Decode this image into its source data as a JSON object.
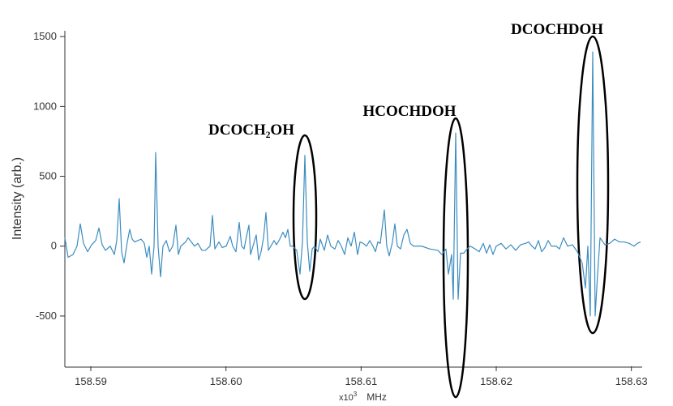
{
  "chart_data": {
    "type": "line",
    "ylabel": "Intensity (arb.)",
    "xlabel": "MHz",
    "x_multiplier": "x10",
    "x_multiplier_exponent": "3",
    "annotations": [
      "DCOCH₂OH",
      "HCOCHDOH",
      "DCOCHDOH"
    ],
    "color": "#3d8dbf",
    "xlim": [
      158.58808,
      158.63068
    ],
    "ylim": [
      -860,
      1530
    ],
    "xticks": [
      158.59,
      {
        "value": 158.6,
        "label": "158.60"
      },
      158.61,
      158.62,
      158.63
    ],
    "yticks": [
      -500,
      0,
      500,
      1000,
      1500
    ],
    "x": [
      158.58808,
      158.58832,
      158.58868,
      158.58898,
      158.58922,
      158.58946,
      158.58976,
      158.59006,
      158.59036,
      158.5906,
      158.59084,
      158.59108,
      158.59144,
      158.59174,
      158.59192,
      158.5921,
      158.59228,
      158.59246,
      158.5927,
      158.59288,
      158.59306,
      158.59324,
      158.59348,
      158.59372,
      158.59396,
      158.59414,
      158.59432,
      158.5945,
      158.59468,
      158.5948,
      158.59498,
      158.59516,
      158.59534,
      158.59558,
      158.59582,
      158.59606,
      158.5963,
      158.59648,
      158.59666,
      158.59702,
      158.5972,
      158.59744,
      158.59768,
      158.59792,
      158.59822,
      158.59846,
      158.59882,
      158.599,
      158.59918,
      158.59948,
      158.59972,
      158.60002,
      158.60032,
      158.6005,
      158.60074,
      158.60098,
      158.60116,
      158.60134,
      158.60152,
      158.6017,
      158.60182,
      158.602,
      158.60224,
      158.60242,
      158.6026,
      158.60278,
      158.60296,
      158.60314,
      158.60332,
      158.60356,
      158.60374,
      158.60398,
      158.60422,
      158.6044,
      158.60458,
      158.60476,
      158.60494,
      158.60524,
      158.60548,
      158.60566,
      158.60584,
      158.60602,
      158.6062,
      158.60638,
      158.60656,
      158.6068,
      158.60698,
      158.60728,
      158.60752,
      158.60776,
      158.60806,
      158.6083,
      158.60854,
      158.60878,
      158.60902,
      158.60926,
      158.6095,
      158.60974,
      158.60992,
      158.61016,
      158.6104,
      158.61064,
      158.61088,
      158.61106,
      158.61124,
      158.61142,
      158.61172,
      158.6119,
      158.61208,
      158.61232,
      158.6125,
      158.61268,
      158.61292,
      158.61316,
      158.6134,
      158.61364,
      158.61388,
      158.61448,
      158.61508,
      158.61568,
      158.61598,
      158.61628,
      158.61646,
      158.6167,
      158.61682,
      158.617,
      158.61718,
      158.61736,
      158.6176,
      158.61784,
      158.61808,
      158.61844,
      158.61874,
      158.61904,
      158.61928,
      158.61952,
      158.61976,
      158.62,
      158.62036,
      158.62072,
      158.62108,
      158.62144,
      158.6218,
      158.62216,
      158.6224,
      158.62264,
      158.62288,
      158.62312,
      158.62336,
      158.6236,
      158.62384,
      158.62408,
      158.62444,
      158.62468,
      158.62498,
      158.62528,
      158.62564,
      158.626,
      158.62636,
      158.6266,
      158.62678,
      158.62696,
      158.62714,
      158.62732,
      158.6275,
      158.62768,
      158.62804,
      158.6284,
      158.62876,
      158.62912,
      158.62948,
      158.62984,
      158.6302,
      158.63044,
      158.63068
    ],
    "values": [
      60,
      -80,
      -60,
      0,
      160,
      20,
      -40,
      10,
      40,
      130,
      10,
      -30,
      0,
      -60,
      40,
      340,
      -40,
      -120,
      30,
      120,
      50,
      30,
      40,
      50,
      20,
      -80,
      0,
      -200,
      0,
      670,
      0,
      -220,
      0,
      40,
      -40,
      0,
      150,
      -60,
      0,
      30,
      60,
      30,
      0,
      20,
      -30,
      -30,
      0,
      220,
      -20,
      30,
      -10,
      0,
      70,
      0,
      -40,
      170,
      0,
      -20,
      70,
      150,
      -60,
      0,
      80,
      -100,
      -40,
      60,
      240,
      -30,
      0,
      40,
      10,
      50,
      100,
      60,
      120,
      0,
      0,
      -30,
      -200,
      30,
      650,
      30,
      -180,
      -20,
      0,
      -40,
      50,
      -30,
      80,
      0,
      -20,
      40,
      0,
      -60,
      60,
      0,
      100,
      -60,
      30,
      20,
      0,
      40,
      0,
      -40,
      30,
      20,
      260,
      0,
      -70,
      30,
      160,
      0,
      -20,
      80,
      120,
      20,
      0,
      0,
      -20,
      -30,
      -60,
      -20,
      -200,
      -60,
      -380,
      810,
      -380,
      -50,
      -50,
      -20,
      0,
      -20,
      -40,
      20,
      -50,
      10,
      -60,
      0,
      20,
      -20,
      10,
      -30,
      10,
      20,
      30,
      0,
      -20,
      40,
      -40,
      -10,
      40,
      0,
      0,
      -20,
      60,
      0,
      10,
      -40,
      -120,
      -300,
      0,
      -500,
      1390,
      -500,
      -200,
      60,
      10,
      20,
      50,
      30,
      30,
      20,
      0,
      20,
      30
    ]
  }
}
